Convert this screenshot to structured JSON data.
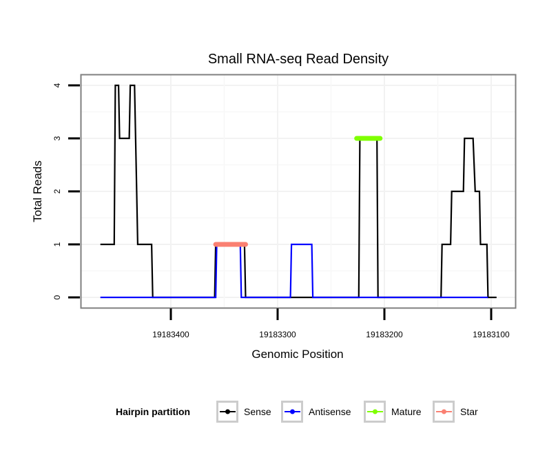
{
  "chart_data": {
    "type": "line",
    "title": "Small RNA-seq Read Density",
    "xlabel": "Genomic Position",
    "ylabel": "Total Reads",
    "x_reversed": true,
    "xlim": [
      19183485,
      19183077
    ],
    "ylim": [
      -0.2,
      4.2
    ],
    "x_ticks": [
      19183400,
      19183300,
      19183200,
      19183100
    ],
    "x_tick_labels": [
      "19183400",
      "19183300",
      "19183200",
      "19183100"
    ],
    "y_ticks": [
      0,
      1,
      2,
      3,
      4
    ],
    "y_tick_labels": [
      "0",
      "1",
      "2",
      "3",
      "4"
    ],
    "grid": true,
    "legend": {
      "title": "Hairpin partition",
      "position": "bottom",
      "entries": [
        {
          "label": "Sense",
          "color": "#000000"
        },
        {
          "label": "Antisense",
          "color": "#0000ff"
        },
        {
          "label": "Mature",
          "color": "#7fff00"
        },
        {
          "label": "Star",
          "color": "#fa8072"
        }
      ]
    },
    "series": [
      {
        "name": "Sense",
        "color": "#000000",
        "points": [
          [
            19183466,
            1
          ],
          [
            19183453,
            1
          ],
          [
            19183452,
            4
          ],
          [
            19183449,
            4
          ],
          [
            19183448,
            3
          ],
          [
            19183439,
            3
          ],
          [
            19183438,
            4
          ],
          [
            19183434,
            4
          ],
          [
            19183432,
            2
          ],
          [
            19183431,
            1
          ],
          [
            19183418,
            1
          ],
          [
            19183417,
            0
          ],
          [
            19183359,
            0
          ],
          [
            19183358,
            1
          ],
          [
            19183331,
            1
          ],
          [
            19183330,
            0
          ],
          [
            19183224,
            0
          ],
          [
            19183223,
            3
          ],
          [
            19183207,
            3
          ],
          [
            19183206,
            0
          ],
          [
            19183147,
            0
          ],
          [
            19183146,
            1
          ],
          [
            19183138,
            1
          ],
          [
            19183137,
            2
          ],
          [
            19183126,
            2
          ],
          [
            19183125,
            3
          ],
          [
            19183117,
            3
          ],
          [
            19183115,
            2
          ],
          [
            19183111,
            2
          ],
          [
            19183110,
            1
          ],
          [
            19183104,
            1
          ],
          [
            19183103,
            0
          ],
          [
            19183095,
            0
          ]
        ]
      },
      {
        "name": "Antisense",
        "color": "#0000ff",
        "points": [
          [
            19183466,
            0
          ],
          [
            19183358,
            0
          ],
          [
            19183357,
            1
          ],
          [
            19183335,
            1
          ],
          [
            19183334,
            0
          ],
          [
            19183288,
            0
          ],
          [
            19183287,
            1
          ],
          [
            19183268,
            1
          ],
          [
            19183267,
            0
          ],
          [
            19183103,
            0
          ]
        ]
      },
      {
        "name": "Mature",
        "color": "#7fff00",
        "segment": {
          "start": 19183226,
          "end": 19183204,
          "reads": 3
        }
      },
      {
        "name": "Star",
        "color": "#fa8072",
        "segment": {
          "start": 19183358,
          "end": 19183330,
          "reads": 1
        }
      }
    ]
  }
}
